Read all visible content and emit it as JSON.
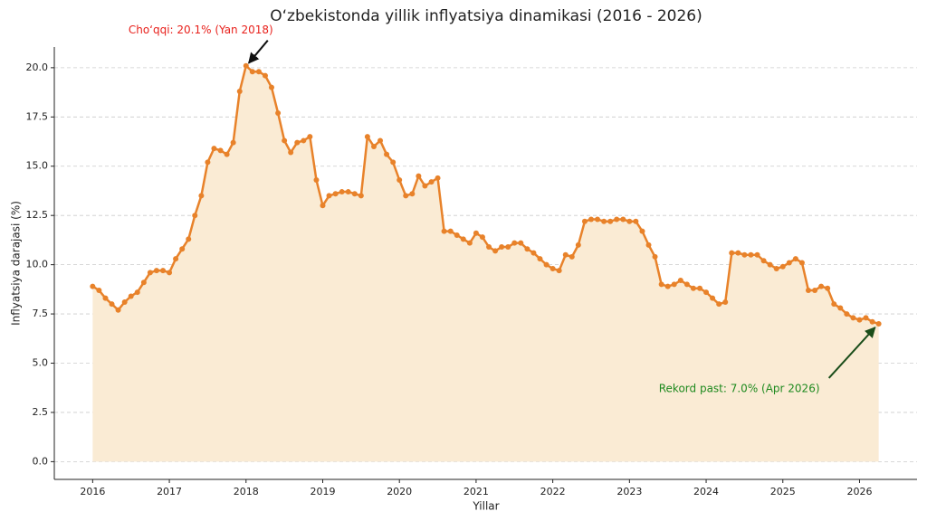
{
  "chart_data": {
    "type": "line",
    "title": "O‘zbekistonda yillik inflyatsiya dinamikasi (2016 - 2026)",
    "xlabel": "Yillar",
    "ylabel": "Inflyatsiya darajasi (%)",
    "x": [
      2016,
      2016.083,
      2016.167,
      2016.25,
      2016.333,
      2016.417,
      2016.5,
      2016.583,
      2016.667,
      2016.75,
      2016.833,
      2016.917,
      2017,
      2017.083,
      2017.167,
      2017.25,
      2017.333,
      2017.417,
      2017.5,
      2017.583,
      2017.667,
      2017.75,
      2017.833,
      2017.917,
      2018,
      2018.083,
      2018.167,
      2018.25,
      2018.333,
      2018.417,
      2018.5,
      2018.583,
      2018.667,
      2018.75,
      2018.833,
      2018.917,
      2019,
      2019.083,
      2019.167,
      2019.25,
      2019.333,
      2019.417,
      2019.5,
      2019.583,
      2019.667,
      2019.75,
      2019.833,
      2019.917,
      2020,
      2020.083,
      2020.167,
      2020.25,
      2020.333,
      2020.417,
      2020.5,
      2020.583,
      2020.667,
      2020.75,
      2020.833,
      2020.917,
      2021,
      2021.083,
      2021.167,
      2021.25,
      2021.333,
      2021.417,
      2021.5,
      2021.583,
      2021.667,
      2021.75,
      2021.833,
      2021.917,
      2022,
      2022.083,
      2022.167,
      2022.25,
      2022.333,
      2022.417,
      2022.5,
      2022.583,
      2022.667,
      2022.75,
      2022.833,
      2022.917,
      2023,
      2023.083,
      2023.167,
      2023.25,
      2023.333,
      2023.417,
      2023.5,
      2023.583,
      2023.667,
      2023.75,
      2023.833,
      2023.917,
      2024,
      2024.083,
      2024.167,
      2024.25,
      2024.333,
      2024.417,
      2024.5,
      2024.583,
      2024.667,
      2024.75,
      2024.833,
      2024.917,
      2025,
      2025.083,
      2025.167,
      2025.25,
      2025.333,
      2025.417,
      2025.5,
      2025.583,
      2025.667,
      2025.75,
      2025.833,
      2025.917,
      2026,
      2026.083,
      2026.167,
      2026.25
    ],
    "series": [
      {
        "color": "#e8822a",
        "fill": "#faebd4",
        "values": [
          8.9,
          8.7,
          8.3,
          8.0,
          7.7,
          8.1,
          8.4,
          8.6,
          9.1,
          9.6,
          9.7,
          9.7,
          9.6,
          10.3,
          10.8,
          11.3,
          12.5,
          13.5,
          15.2,
          15.9,
          15.8,
          15.6,
          16.2,
          18.8,
          20.1,
          19.8,
          19.8,
          19.6,
          19.0,
          17.7,
          16.3,
          15.7,
          16.2,
          16.3,
          16.5,
          14.3,
          13.0,
          13.5,
          13.6,
          13.7,
          13.7,
          13.6,
          13.5,
          16.5,
          16.0,
          16.3,
          15.6,
          15.2,
          14.3,
          13.5,
          13.6,
          14.5,
          14.0,
          14.2,
          14.4,
          11.7,
          11.7,
          11.5,
          11.3,
          11.1,
          11.6,
          11.4,
          10.9,
          10.7,
          10.9,
          10.9,
          11.1,
          11.1,
          10.8,
          10.6,
          10.3,
          10.0,
          9.8,
          9.7,
          10.5,
          10.4,
          11.0,
          12.2,
          12.3,
          12.3,
          12.2,
          12.2,
          12.3,
          12.3,
          12.2,
          12.2,
          11.7,
          11.0,
          10.4,
          9.0,
          8.9,
          9.0,
          9.2,
          9.0,
          8.8,
          8.8,
          8.6,
          8.3,
          8.0,
          8.1,
          10.6,
          10.6,
          10.5,
          10.5,
          10.5,
          10.2,
          10.0,
          9.8,
          9.9,
          10.1,
          10.3,
          10.1,
          8.7,
          8.7,
          8.9,
          8.8,
          8.0,
          7.8,
          7.5,
          7.3,
          7.2,
          7.3,
          7.1,
          7.0
        ]
      }
    ],
    "xlim": [
      2015.5,
      2026.75
    ],
    "xticks": [
      2016,
      2017,
      2018,
      2019,
      2020,
      2021,
      2022,
      2023,
      2024,
      2025,
      2026
    ],
    "ylim": [
      -0.9,
      21.05
    ],
    "yticks": [
      {
        "value": 0,
        "label": "0.0"
      },
      {
        "value": 2.5,
        "label": "2.5"
      },
      {
        "value": 5,
        "label": "5.0"
      },
      {
        "value": 7.5,
        "label": "7.5"
      },
      {
        "value": 10,
        "label": "10.0"
      },
      {
        "value": 12.5,
        "label": "12.5"
      },
      {
        "value": 15,
        "label": "15.0"
      },
      {
        "value": 17.5,
        "label": "17.5"
      },
      {
        "value": 20,
        "label": "20.0"
      }
    ],
    "grid": true,
    "annotations": [
      {
        "text": "Cho‘qqi: 20.1% (Yan 2018)",
        "color": "#e8211c"
      },
      {
        "text": "Rekord past: 7.0% (Apr 2026)",
        "color": "#1f8a1f"
      }
    ]
  }
}
